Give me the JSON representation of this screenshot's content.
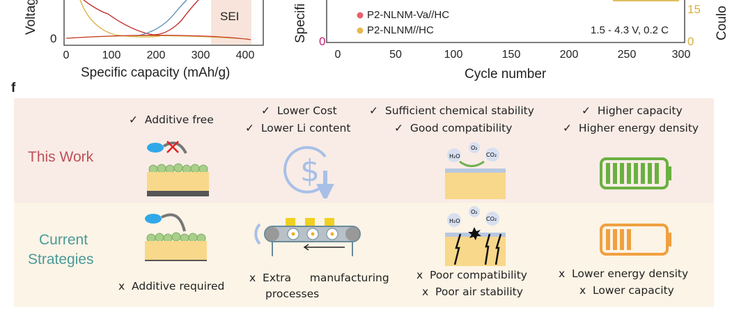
{
  "chart_data": [
    {
      "type": "line",
      "xlabel": "Specific capacity (mAh/g)",
      "ylabel": "Voltag",
      "x_ticks": [
        "0",
        "100",
        "200",
        "300",
        "400"
      ],
      "y_ticks": [
        "0"
      ],
      "xlim": [
        0,
        420
      ],
      "annotation": "SEI"
    },
    {
      "type": "line",
      "xlabel": "Cycle number",
      "ylabel": "Specifi",
      "y2label": "Coulo",
      "x_ticks": [
        "0",
        "50",
        "100",
        "150",
        "200",
        "250",
        "300"
      ],
      "xlim": [
        0,
        300
      ],
      "y_ticks": [
        "0"
      ],
      "y2_ticks": [
        "0",
        "15"
      ],
      "legend": [
        {
          "name": "P2-NLNM-Va//HC",
          "color": "#e8606a"
        },
        {
          "name": "P2-NLNM//HC",
          "color": "#e8b850"
        }
      ],
      "annotation": "1.5 - 4.3 V, 0.2 C"
    }
  ],
  "panel_label": "f",
  "rows": {
    "this_work": "This Work",
    "current": [
      "Current",
      "Strategies"
    ]
  },
  "columns": [
    {
      "top": [
        "Additive free"
      ],
      "bottom": [
        "Additive required"
      ]
    },
    {
      "top": [
        "Lower Cost",
        "Lower Li content"
      ],
      "bottom": [
        "Extra   manufacturing",
        "processes"
      ]
    },
    {
      "top": [
        "Sufficient chemical stability",
        "Good compatibility"
      ],
      "bottom": [
        "Poor compatibility",
        "Poor air stability"
      ]
    },
    {
      "top": [
        "Higher capacity",
        "Higher energy density"
      ],
      "bottom": [
        "Lower energy density",
        "Lower capacity"
      ]
    }
  ],
  "marks": {
    "check": "✓",
    "cross": "x"
  },
  "molecules": {
    "h2o": "H₂O",
    "o2": "O₂",
    "co2": "CO₂"
  },
  "battery": {
    "this_work_level": 1.0,
    "current_level": 0.4
  },
  "colors": {
    "this_work_bg": "#f9ece6",
    "current_bg": "#fcf4e6",
    "this_work_text": "#c0505a",
    "current_text": "#4a9a9a",
    "battery_good": "#6ab040",
    "battery_low": "#f0a040"
  }
}
